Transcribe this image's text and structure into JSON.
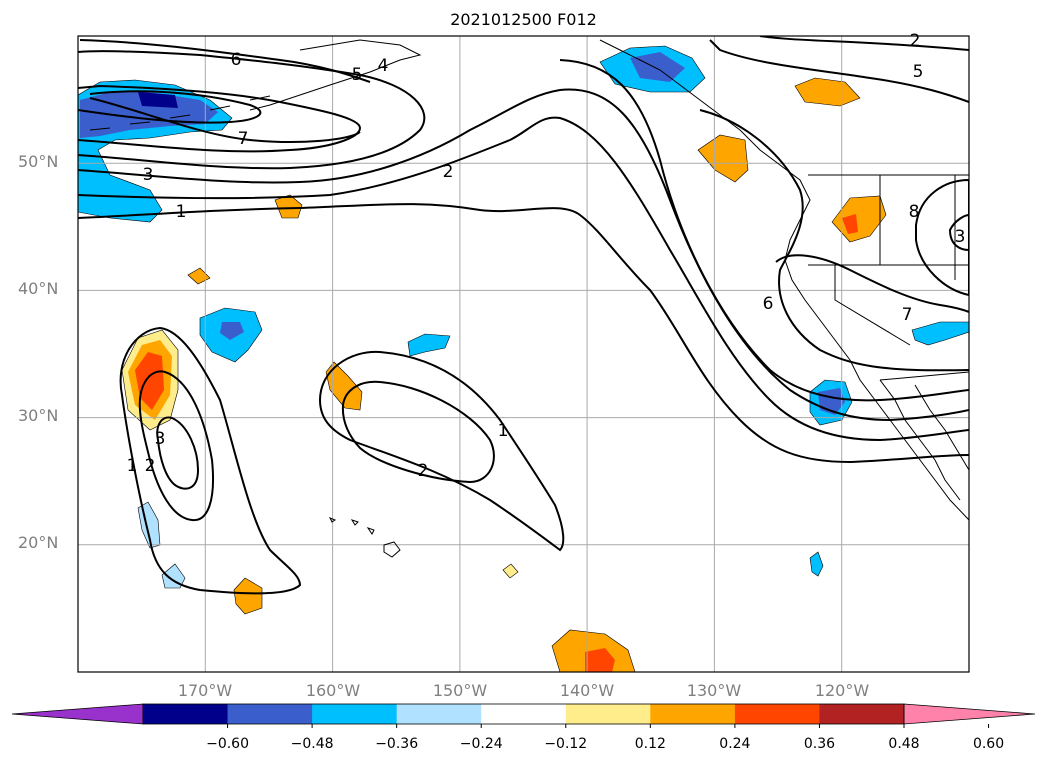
{
  "title": "2021012500 F012",
  "map": {
    "projection": "equirectangular",
    "lon_range": [
      -180,
      -110
    ],
    "lat_range": [
      10,
      60
    ],
    "grid": true,
    "lat_labels": [
      "50°N",
      "40°N",
      "30°N",
      "20°N"
    ],
    "lon_labels": [
      "170°W",
      "160°W",
      "150°W",
      "140°W",
      "130°W",
      "120°W"
    ]
  },
  "contour_labels": [
    "6",
    "5",
    "4",
    "7",
    "3",
    "1",
    "2",
    "2",
    "6",
    "5",
    "7",
    "8",
    "3",
    "3",
    "2",
    "1",
    "1",
    "2"
  ],
  "colorbar": {
    "colors": [
      "#9932cc",
      "#00008b",
      "#3a5fcd",
      "#00bfff",
      "#b0e2ff",
      "#ffffff",
      "#ffec8b",
      "#ffa500",
      "#ff4500",
      "#b22222",
      "#ff82ab"
    ],
    "tick_labels": [
      "−0.60",
      "−0.48",
      "−0.36",
      "−0.24",
      "−0.12",
      "0.12",
      "0.24",
      "0.36",
      "0.48",
      "0.60"
    ],
    "extend": "both"
  }
}
